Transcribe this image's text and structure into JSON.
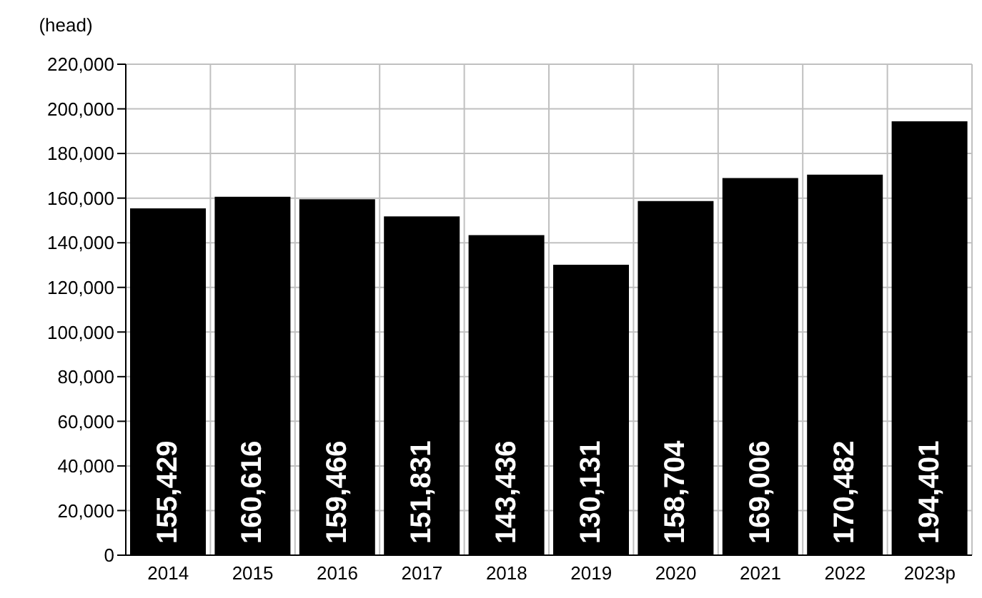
{
  "chart_data": {
    "type": "bar",
    "ylabel": "(head)",
    "categories": [
      "2014",
      "2015",
      "2016",
      "2017",
      "2018",
      "2019",
      "2020",
      "2021",
      "2022",
      "2023p"
    ],
    "values": [
      155429,
      160616,
      159466,
      151831,
      143436,
      130131,
      158704,
      169006,
      170482,
      194401
    ],
    "value_labels": [
      "155,429",
      "160,616",
      "159,466",
      "151,831",
      "143,436",
      "130,131",
      "158,704",
      "169,006",
      "170,482",
      "194,401"
    ],
    "color": "#000000",
    "ylim": [
      0,
      220000
    ],
    "yticks": [
      {
        "value": 0,
        "label": "0"
      },
      {
        "value": 20000,
        "label": "20,000"
      },
      {
        "value": 40000,
        "label": "40,000"
      },
      {
        "value": 60000,
        "label": "60,000"
      },
      {
        "value": 80000,
        "label": "80,000"
      },
      {
        "value": 100000,
        "label": "100,000"
      },
      {
        "value": 120000,
        "label": "120,000"
      },
      {
        "value": 140000,
        "label": "140,000"
      },
      {
        "value": 160000,
        "label": "160,000"
      },
      {
        "value": 180000,
        "label": "180,000"
      },
      {
        "value": 200000,
        "label": "200,000"
      },
      {
        "value": 220000,
        "label": "220,000"
      }
    ],
    "grid": true,
    "legend": false
  }
}
